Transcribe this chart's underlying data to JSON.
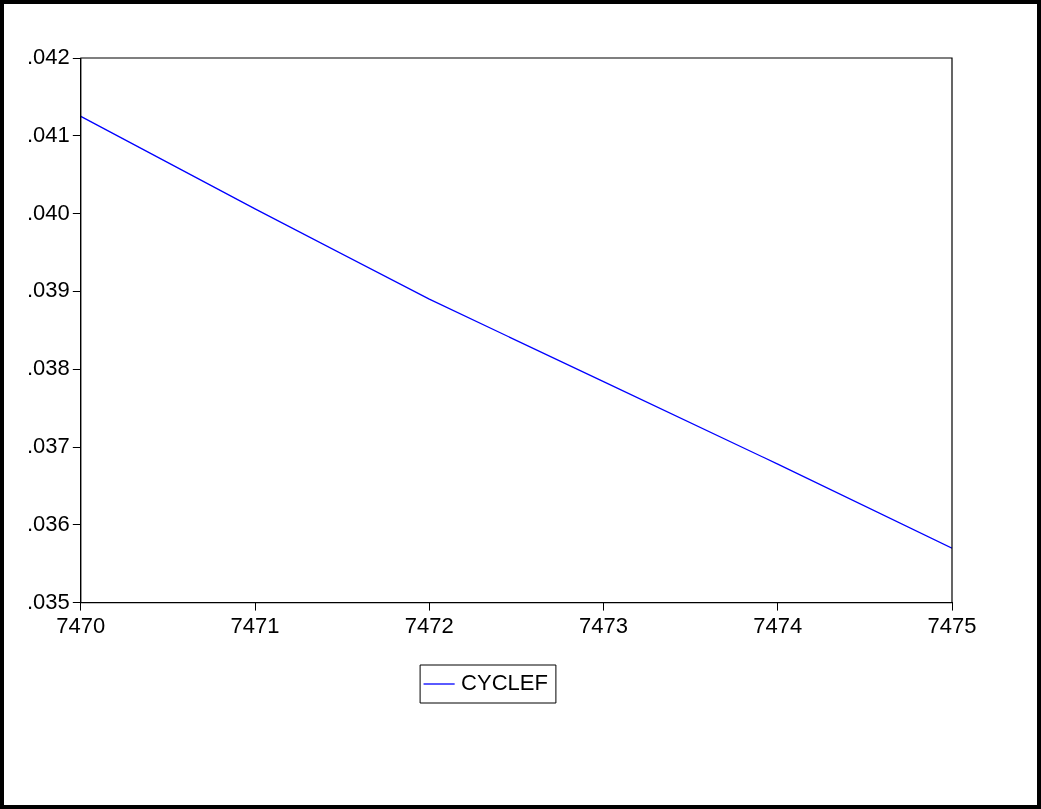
{
  "chart_data": {
    "type": "line",
    "x": [
      7470,
      7471,
      7472,
      7473,
      7474,
      7475
    ],
    "series": [
      {
        "name": "CYCLEF",
        "color": "#0000ff",
        "values": [
          0.04125,
          0.04006,
          0.0389,
          0.03784,
          0.03678,
          0.0357
        ]
      }
    ],
    "xlim": [
      7470,
      7475
    ],
    "xticks": [
      7470,
      7471,
      7472,
      7473,
      7474,
      7475
    ],
    "ylim": [
      0.035,
      0.042
    ],
    "yticks": [
      {
        "value": 0.035,
        "label": ".035"
      },
      {
        "value": 0.036,
        "label": ".036"
      },
      {
        "value": 0.037,
        "label": ".037"
      },
      {
        "value": 0.038,
        "label": ".038"
      },
      {
        "value": 0.039,
        "label": ".039"
      },
      {
        "value": 0.04,
        "label": ".040"
      },
      {
        "value": 0.041,
        "label": ".041"
      },
      {
        "value": 0.042,
        "label": ".042"
      }
    ],
    "grid": false,
    "legend": "bottom",
    "marker": "none",
    "line_style": "solid"
  }
}
